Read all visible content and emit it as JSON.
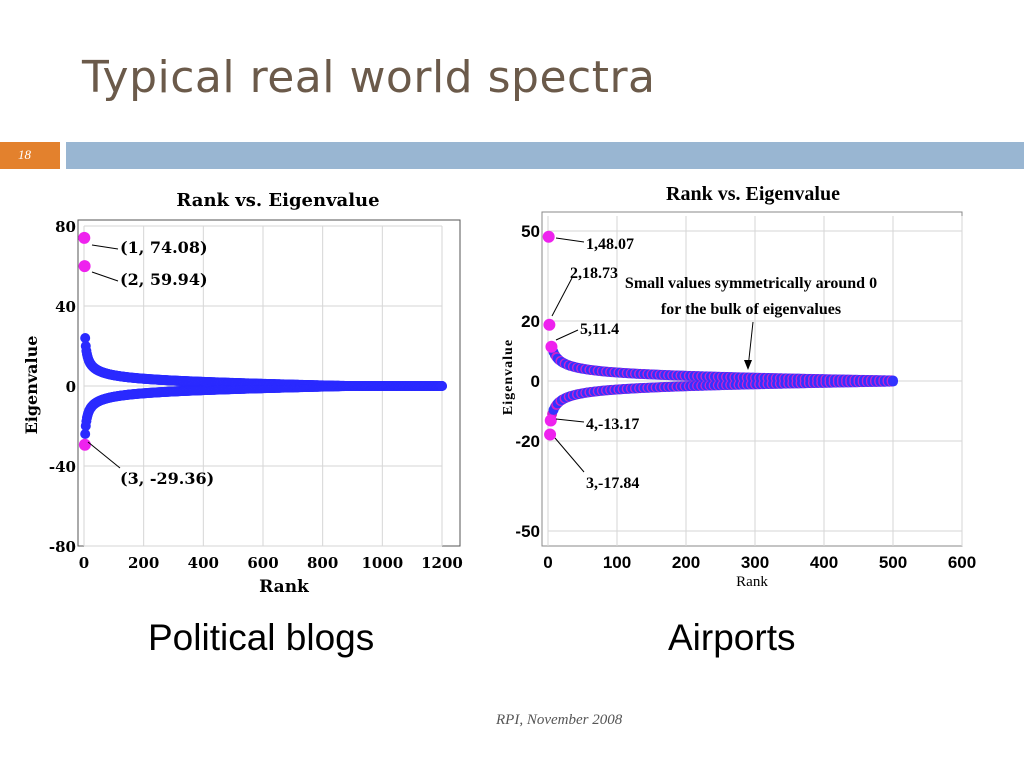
{
  "slide": {
    "title": "Typical real world spectra",
    "number": "18",
    "footer": "RPI, November 2008",
    "accent_color": "#e3812d",
    "band_color": "#99b6d2"
  },
  "captions": {
    "left": "Political blogs",
    "right": "Airports"
  },
  "chart_data": [
    {
      "type": "scatter",
      "title": "Rank vs. Eigenvalue",
      "xlabel": "Rank",
      "ylabel": "Eigenvalue",
      "xlim": [
        0,
        1200
      ],
      "ylim": [
        -80,
        80
      ],
      "xticks": [
        "0",
        "200",
        "400",
        "600",
        "800",
        "1000",
        "1200"
      ],
      "yticks": [
        "80",
        "40",
        "0",
        "-40",
        "-80"
      ],
      "grid": true,
      "n_points": 1200,
      "highlighted_points": [
        {
          "x": 1,
          "y": 74.08
        },
        {
          "x": 2,
          "y": 59.94
        },
        {
          "x": 3,
          "y": -29.36
        }
      ],
      "annotations": [
        "(1, 74.08)",
        "(2, 59.94)",
        "(3, -29.36)"
      ],
      "bulk": {
        "positive_start": 24,
        "negative_start": -24,
        "converges_to": 0
      },
      "colors": {
        "highlight": "#ee22ee",
        "bulk": "#2a2aff"
      }
    },
    {
      "type": "scatter",
      "title": "Rank vs. Eigenvalue",
      "xlabel": "Rank",
      "ylabel": "Eigenvalue",
      "xlim": [
        0,
        600
      ],
      "ylim": [
        -55,
        55
      ],
      "xticks": [
        "0",
        "100",
        "200",
        "300",
        "400",
        "500",
        "600"
      ],
      "yticks": [
        "50",
        "20",
        "0",
        "-20",
        "-50"
      ],
      "grid": true,
      "n_points": 500,
      "highlighted_points": [
        {
          "x": 1,
          "y": 48.07
        },
        {
          "x": 2,
          "y": 18.73
        },
        {
          "x": 3,
          "y": -17.84
        },
        {
          "x": 4,
          "y": -13.17
        },
        {
          "x": 5,
          "y": 11.4
        }
      ],
      "annotations": [
        "1,48.07",
        "2,18.73",
        "5,11.4",
        "4,-13.17",
        "3,-17.84"
      ],
      "note": [
        "Small values symmetrically around 0",
        "for the bulk of eigenvalues"
      ],
      "bulk": {
        "positive_start": 11,
        "negative_start": -11,
        "converges_to": 0
      },
      "colors": {
        "highlight": "#ee22ee",
        "bulk": "#3333ff",
        "bulk_mix": "#cc22cc"
      }
    }
  ]
}
